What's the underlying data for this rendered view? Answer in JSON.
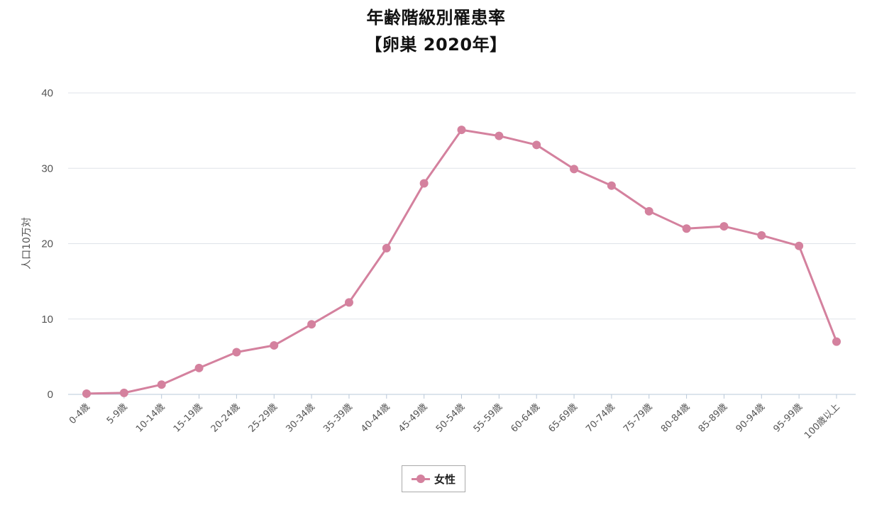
{
  "title": "年齢階級別罹患率",
  "subtitle": "【卵巣 2020年】",
  "colors": {
    "series": "#d4819e",
    "grid": "#dfe3e8",
    "axis": "#b9c8d8"
  },
  "legend": {
    "label": "女性",
    "placement": "bottom-center"
  },
  "chart_data": {
    "type": "line",
    "title": "年齢階級別罹患率",
    "subtitle": "【卵巣 2020年】",
    "ylabel": "人口10万対",
    "xlabel": "",
    "ylim": [
      0,
      40
    ],
    "yticks": [
      0,
      10,
      20,
      30,
      40
    ],
    "grid": true,
    "legend_placement": "bottom-center",
    "categories": [
      "0-4歳",
      "5-9歳",
      "10-14歳",
      "15-19歳",
      "20-24歳",
      "25-29歳",
      "30-34歳",
      "35-39歳",
      "40-44歳",
      "45-49歳",
      "50-54歳",
      "55-59歳",
      "60-64歳",
      "65-69歳",
      "70-74歳",
      "75-79歳",
      "80-84歳",
      "85-89歳",
      "90-94歳",
      "95-99歳",
      "100歳以上"
    ],
    "series": [
      {
        "name": "女性",
        "color": "#d4819e",
        "values": [
          0.1,
          0.2,
          1.3,
          3.5,
          5.6,
          6.5,
          9.3,
          12.2,
          19.4,
          28.0,
          35.1,
          34.3,
          33.1,
          29.9,
          27.7,
          24.3,
          22.0,
          22.3,
          21.1,
          19.7,
          7.0
        ]
      }
    ]
  }
}
